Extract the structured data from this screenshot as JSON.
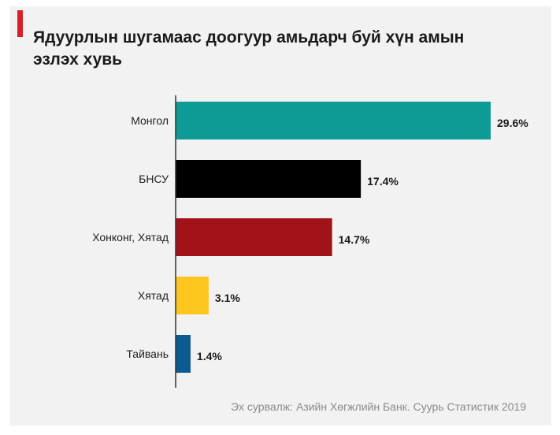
{
  "title_lines": [
    "Ядуурлын шугамаас доогуур амьдарч буй хүн амын",
    "эзлэх хувь"
  ],
  "source": "Эх сурвалж: Азийн Хөгжлийн Банк. Суурь Статистик 2019",
  "colors": {
    "accent": "#d7212a",
    "axis": "#333333",
    "background": "#f2f2f2"
  },
  "chart_data": {
    "type": "bar",
    "orientation": "horizontal",
    "categories": [
      "Монгол",
      "БНСУ",
      "Хонконг, Хятад",
      "Хятад",
      "Тайвань"
    ],
    "values": [
      29.6,
      17.4,
      14.7,
      3.1,
      1.4
    ],
    "data_labels": [
      "29.6%",
      "17.4%",
      "14.7%",
      "3.1%",
      "1.4%"
    ],
    "bar_colors": [
      "#0f9b95",
      "#000000",
      "#a11219",
      "#fcc61f",
      "#0c5a92"
    ],
    "xlim": [
      0,
      29.6
    ],
    "grid": false,
    "legend": "none"
  }
}
